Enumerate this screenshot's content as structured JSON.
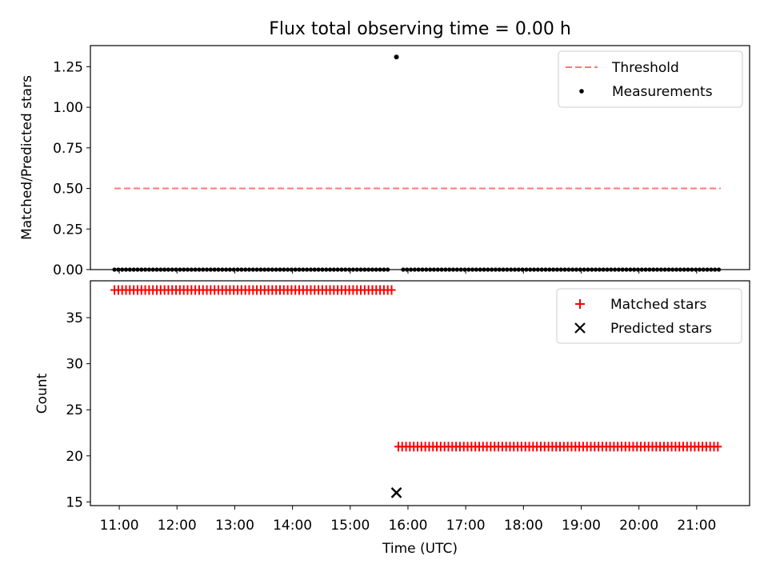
{
  "chart_data": [
    {
      "type": "scatter",
      "title": "Flux total observing time = 0.00 h",
      "ylabel": "Matched/Predicted stars",
      "xlim": [
        "10:30",
        "21:55"
      ],
      "ylim": [
        0,
        1.38
      ],
      "yticks": [
        0.0,
        0.25,
        0.5,
        0.75,
        1.0,
        1.25
      ],
      "ytick_labels": [
        "0.00",
        "0.25",
        "0.50",
        "0.75",
        "1.00",
        "1.25"
      ],
      "legend_position": "top-right",
      "threshold": {
        "name": "Threshold",
        "color": "#ff7777",
        "style": "dashed",
        "y": 0.5,
        "x_start": "10:55",
        "x_end": "21:25"
      },
      "measurements": {
        "name": "Measurements",
        "color": "#000000",
        "outlier": {
          "x": "15:48",
          "y": 1.31
        },
        "baseline_y": 0.0,
        "x_start": "10:55",
        "x_end": "21:25",
        "interval_min": 4
      }
    },
    {
      "type": "scatter",
      "xlabel": "Time (UTC)",
      "ylabel": "Count",
      "xlim": [
        "10:30",
        "21:55"
      ],
      "ylim": [
        14.6,
        39.0
      ],
      "yticks": [
        15,
        20,
        25,
        30,
        35
      ],
      "ytick_labels": [
        "15",
        "20",
        "25",
        "30",
        "35"
      ],
      "xticks": [
        "11:00",
        "12:00",
        "13:00",
        "14:00",
        "15:00",
        "16:00",
        "17:00",
        "18:00",
        "19:00",
        "20:00",
        "21:00"
      ],
      "legend_position": "top-right",
      "matched": {
        "name": "Matched stars",
        "color": "#ff0000",
        "segments": [
          {
            "x_start": "10:55",
            "x_end": "15:45",
            "y": 38
          },
          {
            "x_start": "15:50",
            "x_end": "21:25",
            "y": 21
          }
        ],
        "interval_min": 4
      },
      "predicted": {
        "name": "Predicted stars",
        "color": "#000000",
        "points": [
          {
            "x": "15:48",
            "y": 16
          }
        ]
      }
    }
  ]
}
